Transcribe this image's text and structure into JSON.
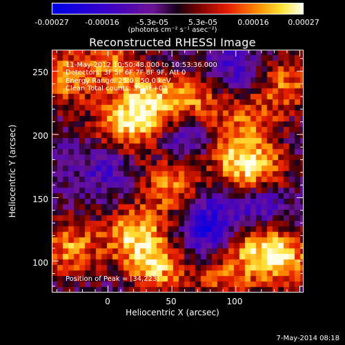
{
  "colorbar": {
    "ticks": [
      "-0.00027",
      "-0.00016",
      "-5.3e-05",
      "5.3e-05",
      "0.00016",
      "0.00027"
    ],
    "unit_text": "(photons cm⁻² s⁻¹ asec⁻²)",
    "range": [
      -0.00027,
      0.00027
    ]
  },
  "title": "Reconstructed RHESSI Image",
  "annotations": {
    "time": "11-May-2012 10:50:48.000 to 10:53:36.000",
    "detectors": "Detectors: 3F 5F 6F 7F 8F 9F, Att 0",
    "energy": "Energy Range: 25.0 - 50.0 keV",
    "method": "Clean     Total counts: 3.04E+03",
    "peak": "Position of Peak = [34,223]"
  },
  "footer": "7-May-2014 08:18",
  "chart_data": {
    "type": "heatmap",
    "title": "Reconstructed RHESSI Image",
    "xlabel": "Heliocentric X (arcsec)",
    "ylabel": "Heliocentric Y (arcsec)",
    "xlim": [
      -44,
      153
    ],
    "ylim": [
      75,
      267
    ],
    "xticks": [
      "0",
      "50",
      "100"
    ],
    "yticks": [
      "100",
      "150",
      "200",
      "250"
    ],
    "colorscale": "blue-purple-red-yellow-white",
    "value_range": [
      -0.00027,
      0.00027
    ],
    "peak_position": [
      34,
      223
    ],
    "bright_regions": [
      {
        "x": 34,
        "y": 223,
        "level": 1.0
      },
      {
        "x": 10,
        "y": 205,
        "level": 0.85
      },
      {
        "x": 20,
        "y": 120,
        "level": 0.95
      },
      {
        "x": 50,
        "y": 160,
        "level": 0.8
      },
      {
        "x": 40,
        "y": 95,
        "level": 0.9
      },
      {
        "x": -30,
        "y": 110,
        "level": 0.85
      },
      {
        "x": -35,
        "y": 245,
        "level": 0.8
      },
      {
        "x": 5,
        "y": 255,
        "level": 0.7
      },
      {
        "x": 100,
        "y": 180,
        "level": 0.75
      },
      {
        "x": 120,
        "y": 170,
        "level": 0.8
      },
      {
        "x": 120,
        "y": 110,
        "level": 0.8
      },
      {
        "x": 90,
        "y": 90,
        "level": 0.7
      },
      {
        "x": 140,
        "y": 100,
        "level": 0.75
      },
      {
        "x": 70,
        "y": 225,
        "level": 0.75
      },
      {
        "x": 140,
        "y": 240,
        "level": 0.7
      },
      {
        "x": 110,
        "y": 215,
        "level": 0.55
      }
    ],
    "dark_regions": [
      {
        "x": 120,
        "y": 145,
        "level": -0.7
      },
      {
        "x": 60,
        "y": 200,
        "level": -0.6
      },
      {
        "x": 75,
        "y": 115,
        "level": -0.5
      },
      {
        "x": 0,
        "y": 175,
        "level": -0.45
      },
      {
        "x": 100,
        "y": 250,
        "level": -0.5
      },
      {
        "x": 80,
        "y": 135,
        "level": -0.55
      }
    ]
  }
}
